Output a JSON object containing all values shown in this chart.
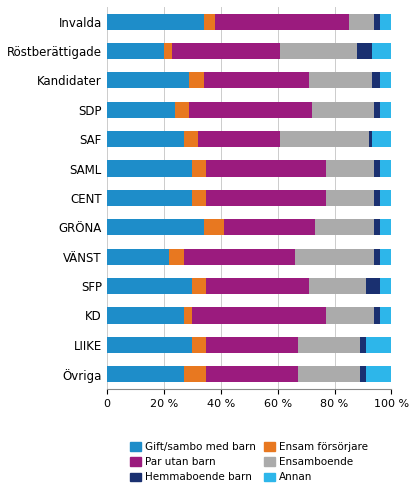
{
  "categories": [
    "Invalda",
    "Röstberättigade",
    "Kandidater",
    "SDP",
    "SAF",
    "SAML",
    "CENT",
    "GRÖNA",
    "VÄNST",
    "SFP",
    "KD",
    "LIIKE",
    "Övriga"
  ],
  "series": [
    {
      "label": "Gift/sambo med barn",
      "color": "#1E8DC9",
      "values": [
        34,
        20,
        29,
        24,
        27,
        30,
        30,
        34,
        22,
        30,
        27,
        30,
        27
      ]
    },
    {
      "label": "Ensam försörjare",
      "color": "#E87820",
      "values": [
        4,
        3,
        5,
        5,
        5,
        5,
        5,
        7,
        5,
        5,
        3,
        5,
        8
      ]
    },
    {
      "label": "Par utan barn",
      "color": "#9B1B7E",
      "values": [
        47,
        38,
        37,
        43,
        29,
        42,
        42,
        32,
        39,
        36,
        47,
        32,
        32
      ]
    },
    {
      "label": "Ensamboende",
      "color": "#ABABAB",
      "values": [
        9,
        27,
        22,
        22,
        31,
        17,
        17,
        21,
        28,
        20,
        17,
        22,
        22
      ]
    },
    {
      "label": "Hemmaboende barn",
      "color": "#1A3070",
      "values": [
        2,
        5,
        3,
        2,
        1,
        2,
        2,
        2,
        2,
        5,
        2,
        2,
        2
      ]
    },
    {
      "label": "Annan",
      "color": "#2DB6EA",
      "values": [
        4,
        7,
        4,
        4,
        7,
        4,
        4,
        4,
        4,
        4,
        4,
        9,
        9
      ]
    }
  ],
  "legend_order": [
    0,
    2,
    4,
    1,
    3,
    5
  ],
  "xlim": [
    0,
    100
  ],
  "xticks": [
    0,
    20,
    40,
    60,
    80,
    100
  ],
  "xticklabels": [
    "0",
    "20 %",
    "40 %",
    "60 %",
    "80 %",
    "100 %"
  ],
  "figsize": [
    4.16,
    4.91
  ],
  "dpi": 100,
  "bar_height": 0.55,
  "legend_fontsize": 7.5,
  "tick_fontsize": 8.0,
  "label_fontsize": 8.5
}
